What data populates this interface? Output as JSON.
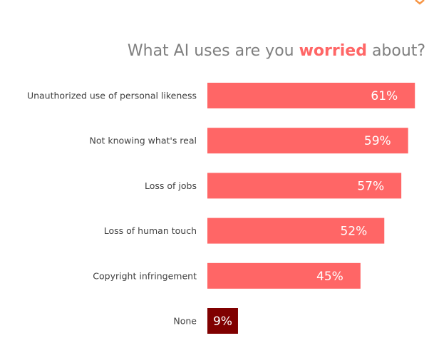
{
  "chart_data": {
    "type": "bar",
    "orientation": "horizontal",
    "title": {
      "before": "What AI uses are you ",
      "emphasis": "worried",
      "after": " about?"
    },
    "categories": [
      "Unauthorized use of personal likeness",
      "Not knowing what's real",
      "Loss of jobs",
      "Loss of human touch",
      "Copyright infringement",
      "None"
    ],
    "values": [
      61,
      59,
      57,
      52,
      45,
      9
    ],
    "value_labels": [
      "61%",
      "59%",
      "57%",
      "52%",
      "45%",
      "9%"
    ],
    "xlim": [
      0,
      62
    ],
    "grid": false,
    "legend": "none",
    "colors": {
      "bar": "#ff6666",
      "bar_highlight": "#800000",
      "title_text": "#7f7f7f",
      "title_emphasis": "#ff6666",
      "accent": "#f79646"
    },
    "highlight_category": "None"
  }
}
